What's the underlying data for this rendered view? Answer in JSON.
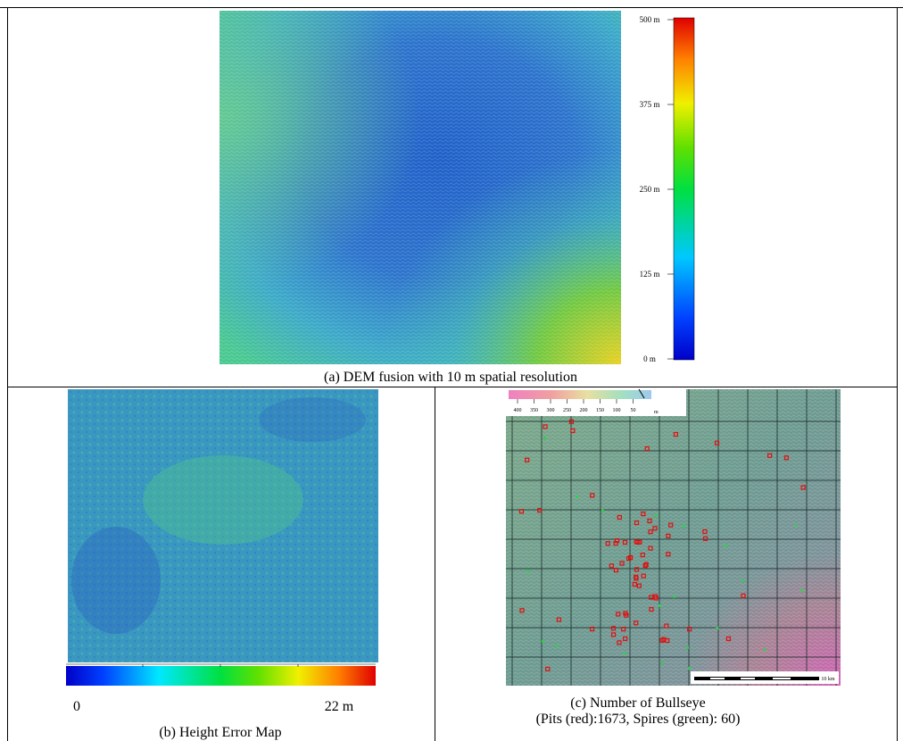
{
  "panels": [
    {
      "caption": "(a) DEM fusion with 10 m spatial resolution",
      "colorbar_labels": [
        "500 m",
        "375 m",
        "250 m",
        "125 m",
        "0 m"
      ]
    },
    {
      "caption": "(b) Height Error Map",
      "colorbar_labels": [
        "0",
        "22 m"
      ]
    },
    {
      "caption_lines": [
        "(c) Number of Bullseye",
        "(Pits (red):1673, Spires (green): 60)"
      ],
      "legend_ticks": [
        "400",
        "350",
        "300",
        "250",
        "200",
        "150",
        "100",
        "50"
      ],
      "legend_unit": "m",
      "scale_label": "10 km"
    }
  ]
}
